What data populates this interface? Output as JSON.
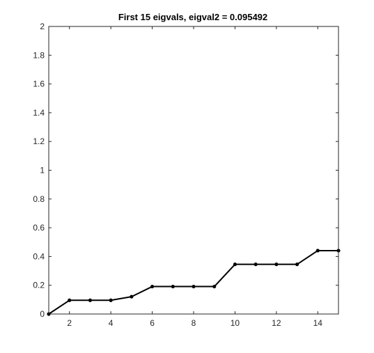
{
  "chart_data": {
    "type": "line",
    "title": "First 15 eigvals, eigval2 = 0.095492",
    "xlabel": "",
    "ylabel": "",
    "xlim": [
      1,
      15
    ],
    "ylim": [
      0,
      2
    ],
    "xticks": [
      2,
      4,
      6,
      8,
      10,
      12,
      14
    ],
    "yticks": [
      0,
      0.2,
      0.4,
      0.6,
      0.8,
      1,
      1.2,
      1.4,
      1.6,
      1.8,
      2
    ],
    "xtick_labels": [
      "2",
      "4",
      "6",
      "8",
      "10",
      "12",
      "14"
    ],
    "ytick_labels": [
      "0",
      "0.2",
      "0.4",
      "0.6",
      "0.8",
      "1",
      "1.2",
      "1.4",
      "1.6",
      "1.8",
      "2"
    ],
    "grid": false,
    "series": [
      {
        "x": [
          1,
          2,
          3,
          4,
          5,
          6,
          7,
          8,
          9,
          10,
          11,
          12,
          13,
          14,
          15
        ],
        "values": [
          0,
          0.0955,
          0.0955,
          0.0955,
          0.1206,
          0.191,
          0.191,
          0.191,
          0.191,
          0.3455,
          0.3455,
          0.3455,
          0.3455,
          0.4409,
          0.4409
        ],
        "color": "#000000",
        "marker": "dot"
      }
    ]
  }
}
